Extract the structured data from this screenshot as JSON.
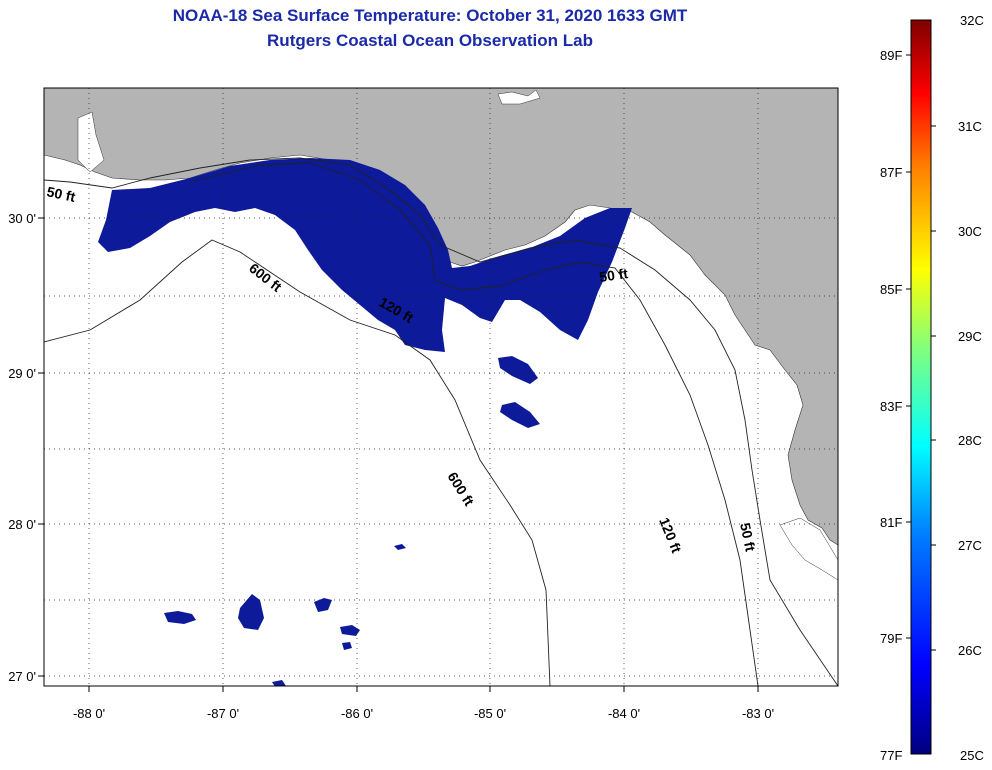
{
  "header": {
    "title_line1": "NOAA-18 Sea Surface Temperature:  October 31, 2020 1633 GMT",
    "title_line2": "Rutgers Coastal Ocean Observation Lab"
  },
  "map": {
    "lon_labels": [
      "-88 0'",
      "-87 0'",
      "-86 0'",
      "-85 0'",
      "-84 0'",
      "-83 0'"
    ],
    "lat_labels": [
      "30 0'",
      "29 0'",
      "28 0'",
      "27 0'"
    ],
    "contour_labels": {
      "c50_west": "50 ft",
      "c600_north": "600 ft",
      "c120_north": "120 ft",
      "c50_east": "50 ft",
      "c600_south": "600 ft",
      "c120_south": "120 ft",
      "c50_south": "50 ft"
    },
    "colors": {
      "land": "#b4b4b4",
      "sst_cold": "#0d1a99",
      "ocean_nodata": "#ffffff"
    }
  },
  "colorbar": {
    "celsius_labels": [
      "32C",
      "31C",
      "30C",
      "29C",
      "28C",
      "27C",
      "26C",
      "25C"
    ],
    "fahrenheit_labels": [
      "89F",
      "87F",
      "85F",
      "83F",
      "81F",
      "79F",
      "77F"
    ],
    "colors": [
      "#00007f",
      "#0000ff",
      "#007fff",
      "#00ffff",
      "#7fff7f",
      "#ffff00",
      "#ff7f00",
      "#ff0000",
      "#7f0000"
    ]
  }
}
